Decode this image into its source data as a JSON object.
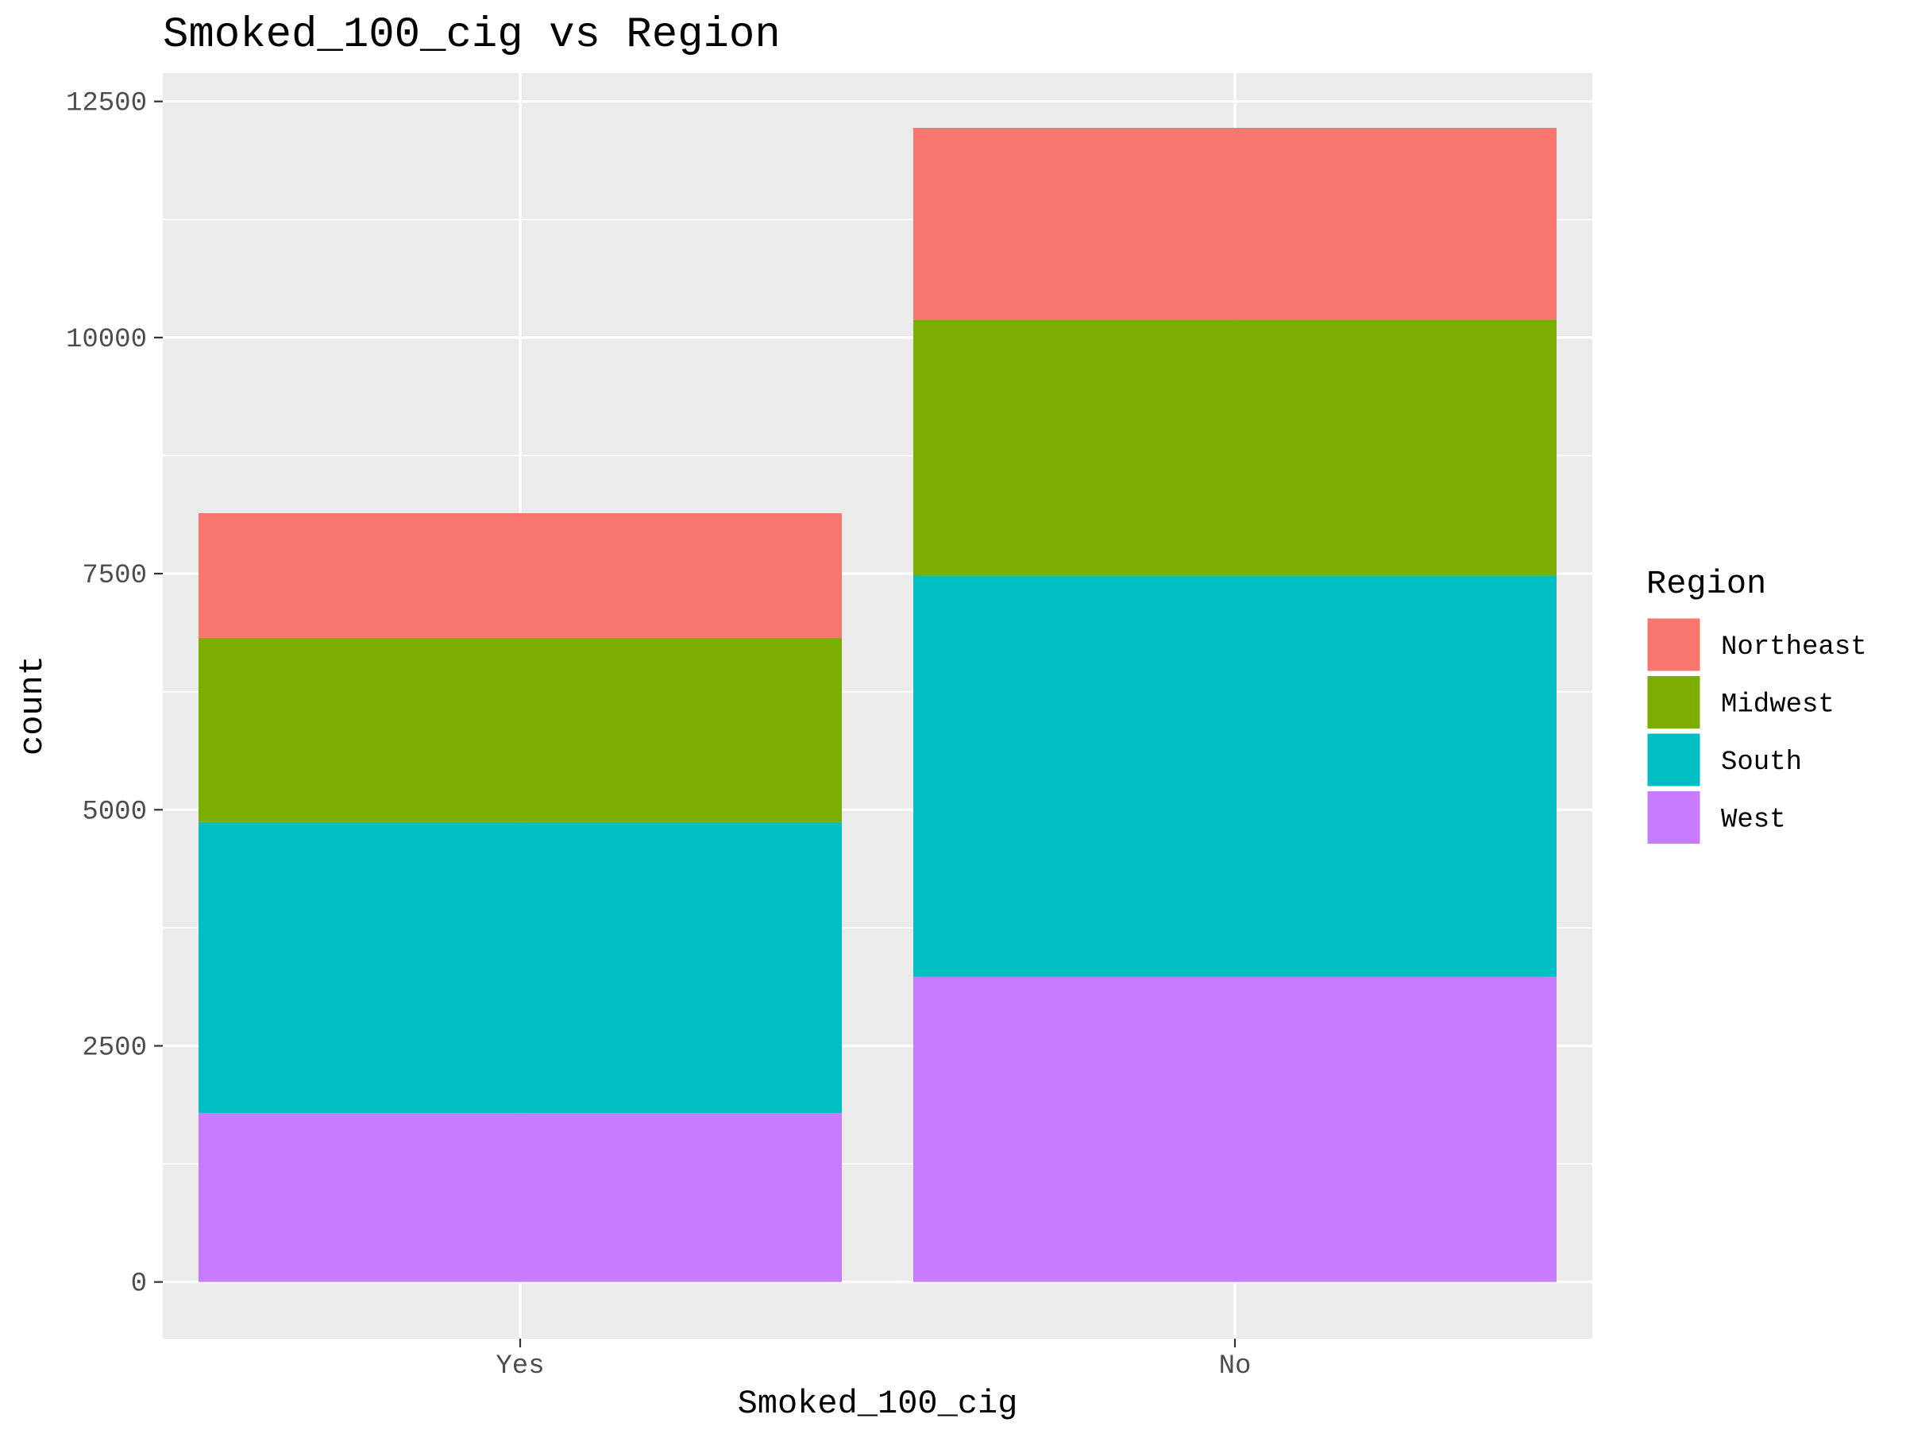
{
  "chart_data": {
    "type": "bar",
    "stacked": true,
    "title": "Smoked_100_cig vs Region",
    "xlabel": "Smoked_100_cig",
    "ylabel": "count",
    "categories": [
      "Yes",
      "No"
    ],
    "ylim": [
      -600,
      12800
    ],
    "yticks": [
      0,
      2500,
      5000,
      7500,
      10000,
      12500
    ],
    "ytick_labels": [
      "0",
      "2500",
      "5000",
      "7500",
      "10000",
      "12500"
    ],
    "grid": true,
    "panel_background": "#ebebeb",
    "legend": {
      "title": "Region",
      "position": "right"
    },
    "series": [
      {
        "name": "Northeast",
        "color": "#f8766d",
        "values": [
          1320,
          2030
        ]
      },
      {
        "name": "Midwest",
        "color": "#7cae00",
        "values": [
          1950,
          2710
        ]
      },
      {
        "name": "South",
        "color": "#00bfc4",
        "values": [
          3080,
          4250
        ]
      },
      {
        "name": "West",
        "color": "#c77cff",
        "values": [
          1790,
          3230
        ]
      }
    ]
  }
}
